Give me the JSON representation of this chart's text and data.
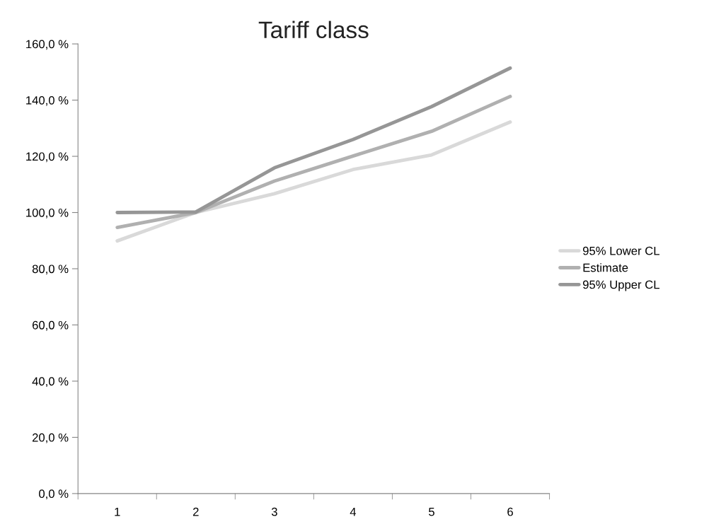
{
  "chart_data": {
    "type": "line",
    "title": "Tariff class",
    "categories": [
      "1",
      "2",
      "3",
      "4",
      "5",
      "6"
    ],
    "series": [
      {
        "name": "95% Lower CL",
        "color": "#d9d9d9",
        "values": [
          89.9,
          100,
          106.7,
          115.3,
          120.5,
          132.2
        ]
      },
      {
        "name": "Estimate",
        "color": "#b0b0b0",
        "values": [
          94.7,
          100,
          111.2,
          120.1,
          128.9,
          141.3
        ]
      },
      {
        "name": "95% Upper CL",
        "color": "#969696",
        "values": [
          100,
          100.2,
          115.9,
          126.0,
          137.7,
          151.4
        ]
      }
    ],
    "ylim": [
      0,
      160
    ],
    "yticks": [
      {
        "value": 0,
        "label": "0,0 %"
      },
      {
        "value": 20,
        "label": "20,0 %"
      },
      {
        "value": 40,
        "label": "40,0 %"
      },
      {
        "value": 60,
        "label": "60,0 %"
      },
      {
        "value": 80,
        "label": "80,0 %"
      },
      {
        "value": 100,
        "label": "100,0 %"
      },
      {
        "value": 120,
        "label": "120,0 %"
      },
      {
        "value": 140,
        "label": "140,0 %"
      },
      {
        "value": 160,
        "label": "160,0 %"
      }
    ],
    "grid": false,
    "legend": "right",
    "marker": "none",
    "line_style": "solid"
  }
}
